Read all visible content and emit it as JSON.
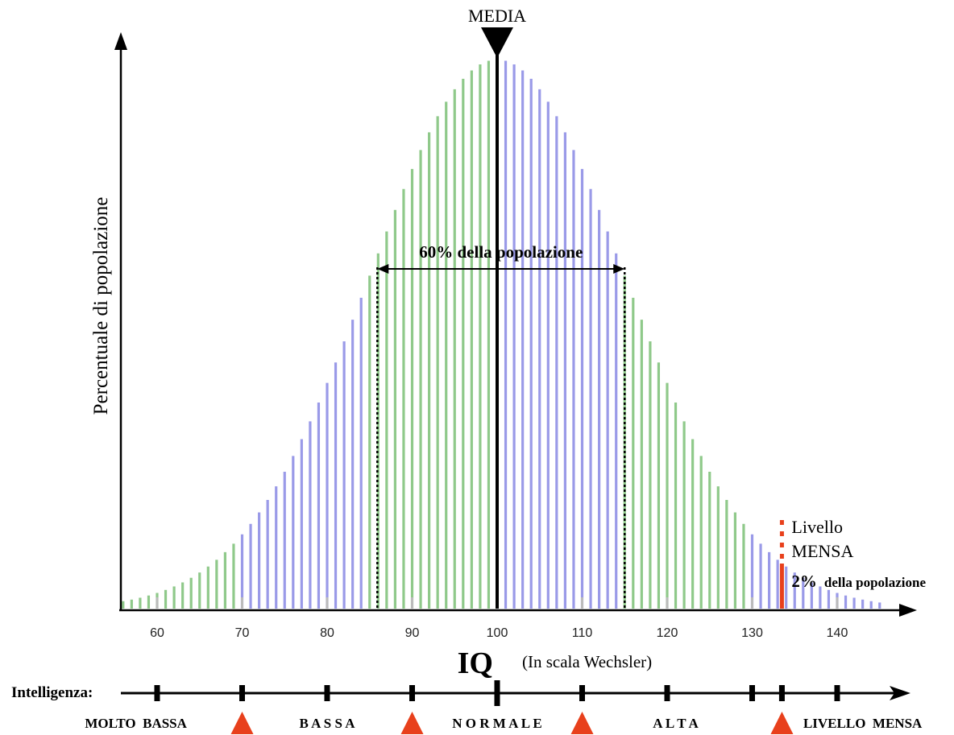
{
  "chart_data": {
    "type": "bar",
    "title": "",
    "xlabel_main": "IQ",
    "xlabel_sub": "(In scala Wechsler)",
    "ylabel": "Percentuale di popolazione",
    "xlim": [
      56,
      145
    ],
    "x_ticks": [
      "60",
      "70",
      "80",
      "90",
      "100",
      "110",
      "120",
      "130",
      "140"
    ],
    "distribution": {
      "mean": 100,
      "sd": 15,
      "step": 1
    },
    "color_bands": [
      {
        "from": 56,
        "to": 69,
        "color": "#8fc98a"
      },
      {
        "from": 70,
        "to": 84,
        "color": "#9a9ae8"
      },
      {
        "from": 85,
        "to": 99,
        "color": "#8fc98a"
      },
      {
        "from": 100,
        "to": 114,
        "color": "#9a9ae8"
      },
      {
        "from": 115,
        "to": 129,
        "color": "#8fc98a"
      },
      {
        "from": 130,
        "to": 145,
        "color": "#9a9ae8"
      }
    ],
    "annotations": {
      "mean_label": "MEDIA",
      "mean_value": 100,
      "range_label": "60% della popolazione",
      "range": [
        86,
        115
      ],
      "mensa_label_line1": "Livello",
      "mensa_label_line2": "MENSA",
      "mensa_value": 133.5,
      "mensa_pct_strong": "2%",
      "mensa_pct_rest": "della popolazione"
    }
  },
  "intelligence_scale": {
    "label": "Intelligenza:",
    "tick_values": [
      60,
      70,
      80,
      90,
      100,
      110,
      120,
      130,
      133.5,
      140
    ],
    "boundary_values": [
      70,
      90,
      110,
      133.5
    ],
    "categories": [
      {
        "text": "MOLTO  BASSA",
        "center": 57.5
      },
      {
        "text": "B A S S A",
        "center": 80
      },
      {
        "text": "N O R M A L E",
        "center": 100
      },
      {
        "text": "A L T A",
        "center": 121
      },
      {
        "text": "LIVELLO  MENSA",
        "center": 143
      }
    ]
  },
  "colors": {
    "green": "#8fc98a",
    "purple": "#9a9ae8",
    "mensa_red": "#e8401c",
    "marker_red": "#e8401c",
    "axis": "#000000"
  }
}
